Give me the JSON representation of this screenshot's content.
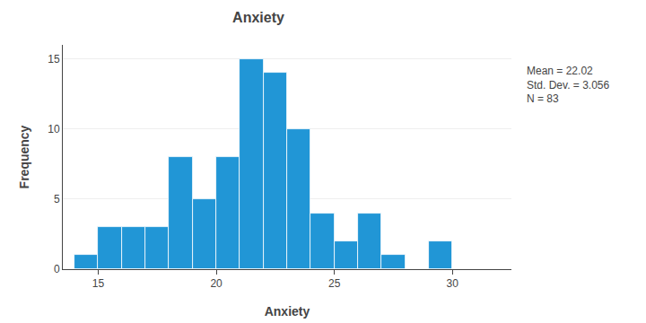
{
  "chart_data": {
    "type": "histogram",
    "title": "Anxiety",
    "xlabel": "Anxiety",
    "ylabel": "Frequency",
    "bins": [
      14,
      15,
      16,
      17,
      18,
      19,
      20,
      21,
      22,
      23,
      24,
      25,
      26,
      27,
      28,
      29,
      30,
      31
    ],
    "values": [
      1,
      3,
      3,
      3,
      8,
      5,
      8,
      15,
      14,
      10,
      4,
      2,
      4,
      1,
      0,
      2,
      0
    ],
    "color": "#2196d6",
    "xlim": [
      13.5,
      32.5
    ],
    "ylim": [
      0,
      16
    ],
    "xticks": [
      15,
      20,
      25,
      30
    ],
    "yticks": [
      0,
      5,
      10,
      15
    ],
    "grid": true,
    "annotations": [
      "Mean = 22.02\nStd. Dev. = 3.056\nN = 83"
    ]
  }
}
